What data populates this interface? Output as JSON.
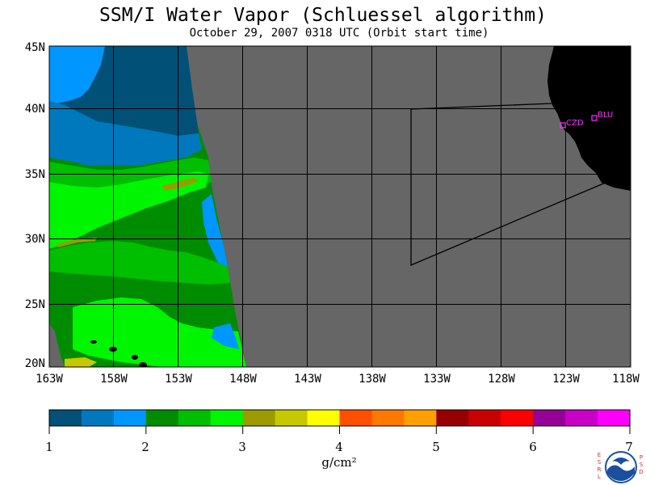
{
  "header": {
    "title": "SSM/I Water Vapor (Schluessel algorithm)",
    "subtitle": "October 29, 2007  0318 UTC  (Orbit start time)"
  },
  "map": {
    "lat_labels": [
      "45N",
      "40N",
      "35N",
      "30N",
      "25N",
      "20N"
    ],
    "lon_labels": [
      "163W",
      "158W",
      "153W",
      "148W",
      "143W",
      "138W",
      "133W",
      "128W",
      "123W",
      "118W"
    ],
    "no_data_color": "#666666",
    "land_color": "#000000",
    "grid_color": "#000000",
    "stations": [
      {
        "label": "CZD"
      },
      {
        "label": "BLU"
      }
    ],
    "station_color": "#ff33ff"
  },
  "colorbar": {
    "colors": [
      "#005078",
      "#0078be",
      "#0096ff",
      "#008c00",
      "#00be00",
      "#00f500",
      "#9b9b00",
      "#c8c800",
      "#ffff00",
      "#ff5000",
      "#ff7800",
      "#ffa000",
      "#960000",
      "#c80000",
      "#ff0000",
      "#960096",
      "#c800c8",
      "#ff00ff"
    ],
    "tick_labels": [
      "1",
      "2",
      "3",
      "4",
      "5",
      "6",
      "7"
    ],
    "units": "g/cm²"
  },
  "logo": {
    "left_letters": [
      "E",
      "S",
      "R",
      "L"
    ],
    "right_letters": [
      "P",
      "S",
      "D"
    ],
    "badge": "NOAA"
  }
}
